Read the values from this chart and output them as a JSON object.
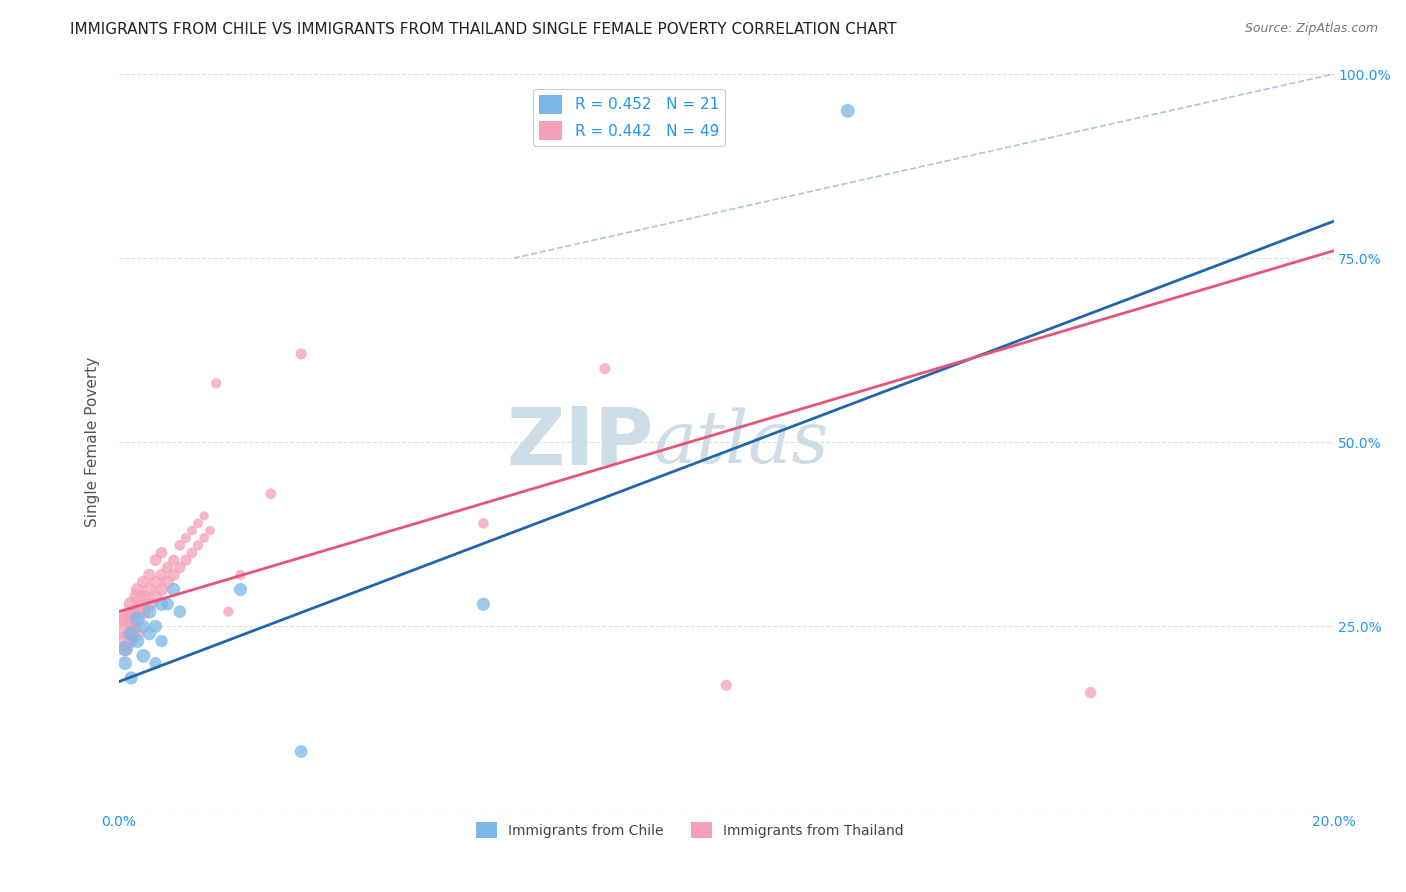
{
  "title": "IMMIGRANTS FROM CHILE VS IMMIGRANTS FROM THAILAND SINGLE FEMALE POVERTY CORRELATION CHART",
  "source": "Source: ZipAtlas.com",
  "ylabel": "Single Female Poverty",
  "xlim": [
    0.0,
    0.2
  ],
  "ylim": [
    0.0,
    1.0
  ],
  "chile_color": "#7ab8e8",
  "thailand_color": "#f4a0b8",
  "chile_line_color": "#2166ac",
  "thailand_line_color": "#e8537a",
  "ref_line_color": "#b0c4d8",
  "chile_R": 0.452,
  "chile_N": 21,
  "thailand_R": 0.442,
  "thailand_N": 49,
  "legend_label_chile": "R = 0.452   N = 21",
  "legend_label_thailand": "R = 0.442   N = 49",
  "watermark_zip": "ZIP",
  "watermark_atlas": "atlas",
  "watermark_color": "#ccdde8",
  "chile_line_x0": 0.0,
  "chile_line_y0": 0.175,
  "chile_line_x1": 0.2,
  "chile_line_y1": 0.8,
  "thailand_line_x0": 0.0,
  "thailand_line_y0": 0.27,
  "thailand_line_x1": 0.2,
  "thailand_line_y1": 0.76,
  "ref_line_x0": 0.065,
  "ref_line_y0": 0.75,
  "ref_line_x1": 0.2,
  "ref_line_y1": 1.0,
  "chile_x": [
    0.001,
    0.001,
    0.002,
    0.002,
    0.003,
    0.003,
    0.004,
    0.004,
    0.005,
    0.005,
    0.006,
    0.006,
    0.007,
    0.007,
    0.008,
    0.009,
    0.01,
    0.02,
    0.03,
    0.06,
    0.12
  ],
  "chile_y": [
    0.22,
    0.2,
    0.24,
    0.18,
    0.23,
    0.26,
    0.21,
    0.25,
    0.27,
    0.24,
    0.25,
    0.2,
    0.28,
    0.23,
    0.28,
    0.3,
    0.27,
    0.3,
    0.08,
    0.28,
    0.95
  ],
  "chile_sizes": [
    120,
    100,
    110,
    90,
    100,
    110,
    100,
    90,
    100,
    90,
    90,
    80,
    90,
    80,
    80,
    90,
    85,
    90,
    85,
    90,
    100
  ],
  "thailand_x": [
    0.001,
    0.001,
    0.001,
    0.001,
    0.002,
    0.002,
    0.002,
    0.002,
    0.002,
    0.003,
    0.003,
    0.003,
    0.003,
    0.004,
    0.004,
    0.004,
    0.005,
    0.005,
    0.005,
    0.006,
    0.006,
    0.006,
    0.007,
    0.007,
    0.007,
    0.008,
    0.008,
    0.009,
    0.009,
    0.01,
    0.01,
    0.011,
    0.011,
    0.012,
    0.012,
    0.013,
    0.013,
    0.014,
    0.014,
    0.015,
    0.016,
    0.018,
    0.02,
    0.025,
    0.03,
    0.06,
    0.08,
    0.1,
    0.16
  ],
  "thailand_y": [
    0.25,
    0.23,
    0.26,
    0.22,
    0.26,
    0.24,
    0.28,
    0.23,
    0.27,
    0.27,
    0.29,
    0.24,
    0.3,
    0.27,
    0.29,
    0.31,
    0.28,
    0.3,
    0.32,
    0.29,
    0.31,
    0.34,
    0.3,
    0.32,
    0.35,
    0.31,
    0.33,
    0.32,
    0.34,
    0.33,
    0.36,
    0.34,
    0.37,
    0.35,
    0.38,
    0.36,
    0.39,
    0.37,
    0.4,
    0.38,
    0.58,
    0.27,
    0.32,
    0.43,
    0.62,
    0.39,
    0.6,
    0.17,
    0.16
  ],
  "thailand_sizes": [
    350,
    200,
    160,
    130,
    170,
    150,
    120,
    100,
    90,
    150,
    130,
    110,
    90,
    120,
    100,
    85,
    110,
    95,
    80,
    100,
    85,
    75,
    90,
    80,
    70,
    80,
    70,
    75,
    65,
    70,
    60,
    65,
    55,
    60,
    50,
    55,
    50,
    50,
    45,
    50,
    55,
    55,
    55,
    60,
    65,
    60,
    65,
    65,
    70
  ],
  "grid_color": "#dddddd",
  "background_color": "#ffffff",
  "title_color": "#222222",
  "axis_label_color": "#555555",
  "tick_color": "#2196F3",
  "legend_fontsize": 11,
  "title_fontsize": 11
}
